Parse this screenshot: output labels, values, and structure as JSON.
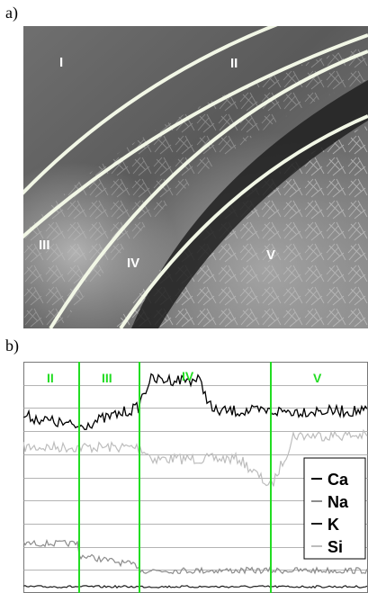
{
  "panel_a": {
    "label": "a)",
    "regions": [
      "I",
      "II",
      "III",
      "IV",
      "V"
    ]
  },
  "panel_b": {
    "label": "b)",
    "region_labels": [
      "II",
      "III",
      "IV",
      "V"
    ],
    "legend": [
      {
        "name": "Ca",
        "color": "#000000"
      },
      {
        "name": "Na",
        "color": "#8c8c8c"
      },
      {
        "name": "K",
        "color": "#1e1e1e"
      },
      {
        "name": "Si",
        "color": "#bdbdbd"
      }
    ]
  },
  "colors": {
    "boundary_curve": "#f2f7e6",
    "region_divider": "#22dd22",
    "region_label": "#22dd22",
    "sem_label": "#ffffff"
  }
}
